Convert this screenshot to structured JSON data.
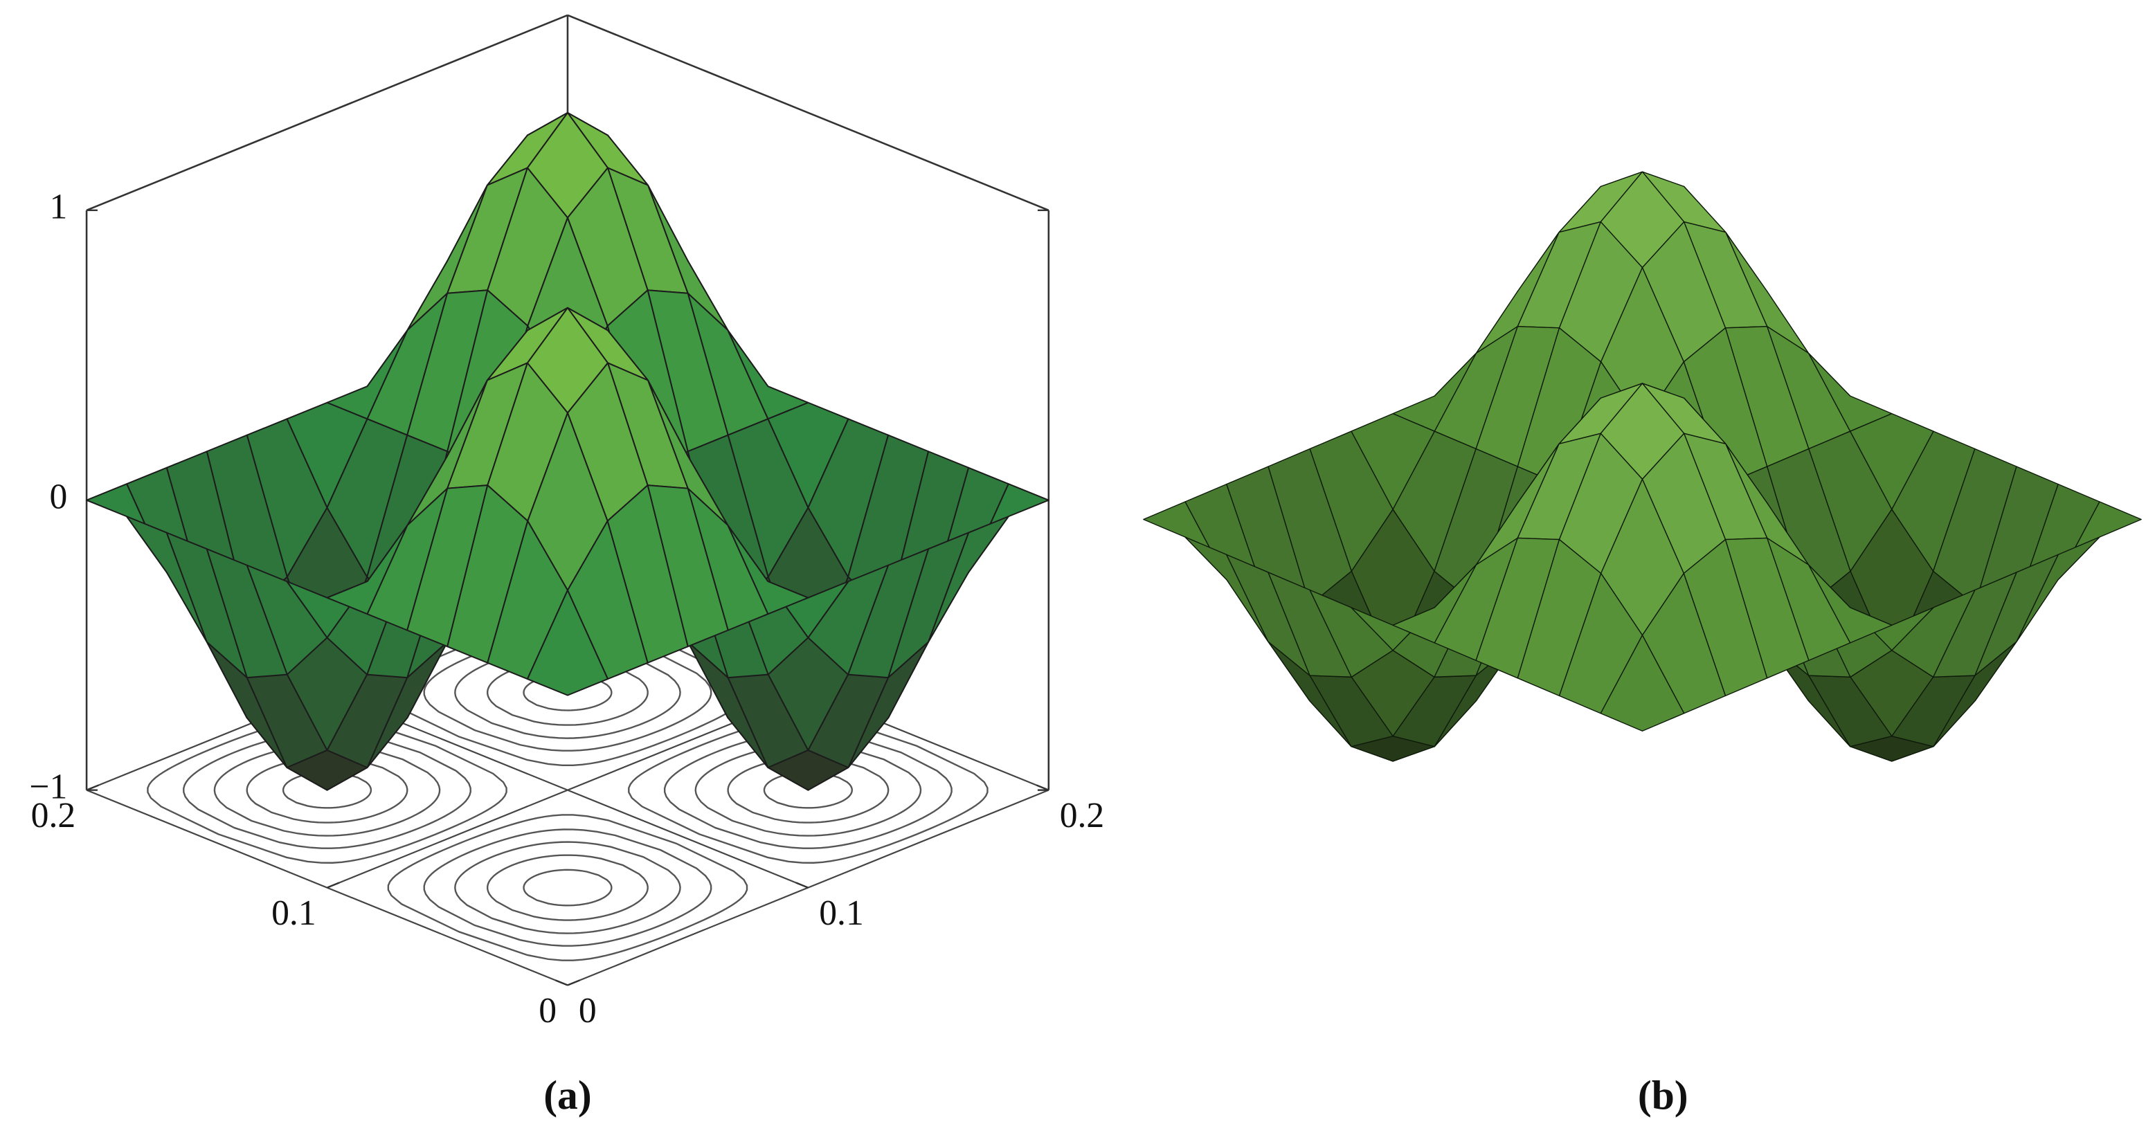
{
  "chart_data": [
    {
      "type": "surface",
      "label": "(a)",
      "x": [
        0,
        0.0167,
        0.0333,
        0.05,
        0.0667,
        0.0833,
        0.1,
        0.1167,
        0.1333,
        0.15,
        0.1667,
        0.1833,
        0.2
      ],
      "y": [
        0,
        0.0167,
        0.0333,
        0.05,
        0.0667,
        0.0833,
        0.1,
        0.1167,
        0.1333,
        0.15,
        0.1667,
        0.1833,
        0.2
      ],
      "z": [
        [
          0,
          0,
          0,
          0,
          0,
          0,
          0,
          0,
          0,
          0,
          0,
          0,
          0
        ],
        [
          0,
          0.25,
          0.433,
          0.5,
          0.433,
          0.25,
          0,
          -0.25,
          -0.433,
          -0.5,
          -0.433,
          -0.25,
          0
        ],
        [
          0,
          0.433,
          0.75,
          0.866,
          0.75,
          0.433,
          0,
          -0.433,
          -0.75,
          -0.866,
          -0.75,
          -0.433,
          0
        ],
        [
          0,
          0.5,
          0.866,
          1,
          0.866,
          0.5,
          0,
          -0.5,
          -0.866,
          -1,
          -0.866,
          -0.5,
          0
        ],
        [
          0,
          0.433,
          0.75,
          0.866,
          0.75,
          0.433,
          0,
          -0.433,
          -0.75,
          -0.866,
          -0.75,
          -0.433,
          0
        ],
        [
          0,
          0.25,
          0.433,
          0.5,
          0.433,
          0.25,
          0,
          -0.25,
          -0.433,
          -0.5,
          -0.433,
          -0.25,
          0
        ],
        [
          0,
          0,
          0,
          0,
          0,
          0,
          0,
          0,
          0,
          0,
          0,
          0,
          0
        ],
        [
          0,
          -0.25,
          -0.433,
          -0.5,
          -0.433,
          -0.25,
          0,
          0.25,
          0.433,
          0.5,
          0.433,
          0.25,
          0
        ],
        [
          0,
          -0.433,
          -0.75,
          -0.866,
          -0.75,
          -0.433,
          0,
          0.433,
          0.75,
          0.866,
          0.75,
          0.433,
          0
        ],
        [
          0,
          -0.5,
          -0.866,
          -1,
          -0.866,
          -0.5,
          0,
          0.5,
          0.866,
          1,
          0.866,
          0.5,
          0
        ],
        [
          0,
          -0.433,
          -0.75,
          -0.866,
          -0.75,
          -0.433,
          0,
          0.433,
          0.75,
          0.866,
          0.75,
          0.433,
          0
        ],
        [
          0,
          -0.25,
          -0.433,
          -0.5,
          -0.433,
          -0.25,
          0,
          0.25,
          0.433,
          0.5,
          0.433,
          0.25,
          0
        ],
        [
          0,
          0,
          0,
          0,
          0,
          0,
          0,
          0,
          0,
          0,
          0,
          0,
          0
        ]
      ],
      "xlim": [
        0,
        0.2
      ],
      "ylim": [
        0,
        0.2
      ],
      "zlim": [
        -1,
        1
      ],
      "xticks": [
        0,
        0.1,
        0.2
      ],
      "yticks": [
        0,
        0.1,
        0.2
      ],
      "zticks": [
        {
          "value": -1,
          "label": "−1"
        },
        0,
        1
      ],
      "colormap": [
        "#2b2a22",
        "#2f8c42",
        "#7cc046"
      ],
      "edgecolor": "#1c1c1c",
      "box": true,
      "contours": true
    },
    {
      "type": "surface",
      "label": "(b)",
      "colormap": [
        "#1f2d14",
        "#4f8a34",
        "#7db84e"
      ],
      "edgecolor": "#0e1a0a",
      "box": false
    }
  ]
}
